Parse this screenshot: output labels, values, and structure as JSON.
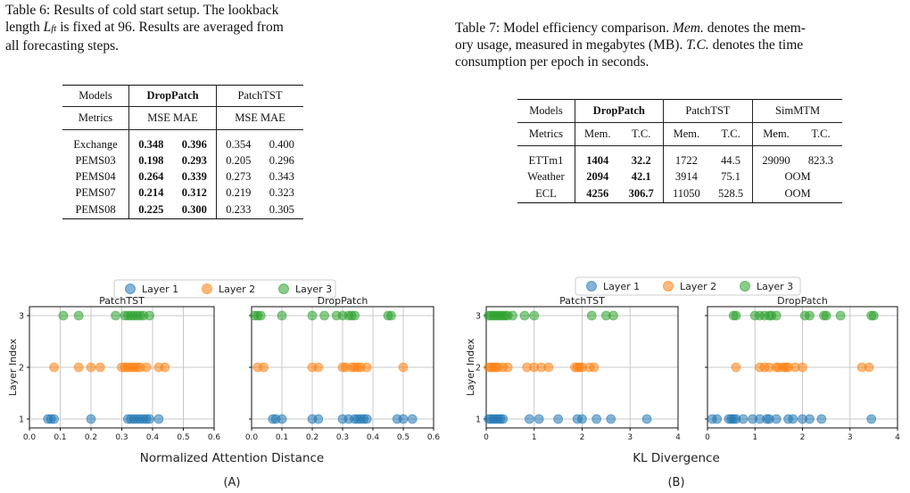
{
  "table6": {
    "caption_a": "Table 6: Results of cold start setup. The lookback",
    "caption_b1": "length ",
    "caption_sym": "L",
    "caption_sub": "ft",
    "caption_b2": " is fixed at 96. Results are averaged from",
    "caption_c": "all forecasting steps.",
    "h_models": "Models",
    "h_m1": "DropPatch",
    "h_m2": "PatchTST",
    "h_metrics": "Metrics",
    "h_mm1": "MSE MAE",
    "h_mm2": "MSE MAE",
    "rows": [
      {
        "name": "Exchange",
        "a": "0.348",
        "b": "0.396",
        "c": "0.354",
        "d": "0.400"
      },
      {
        "name": "PEMS03",
        "a": "0.198",
        "b": "0.293",
        "c": "0.205",
        "d": "0.296"
      },
      {
        "name": "PEMS04",
        "a": "0.264",
        "b": "0.339",
        "c": "0.273",
        "d": "0.343"
      },
      {
        "name": "PEMS07",
        "a": "0.214",
        "b": "0.312",
        "c": "0.219",
        "d": "0.323"
      },
      {
        "name": "PEMS08",
        "a": "0.225",
        "b": "0.300",
        "c": "0.233",
        "d": "0.305"
      }
    ]
  },
  "table7": {
    "cap_1a": "Table 7: Model efficiency comparison. ",
    "cap_mem": "Mem.",
    "cap_1b": " denotes the mem-",
    "cap_2": "ory usage, measured in megabytes (MB). ",
    "cap_tc": "T.C.",
    "cap_2b": " denotes the time",
    "cap_3": "consumption per epoch in seconds.",
    "h_models": "Models",
    "h_m1": "DropPatch",
    "h_m2": "PatchTST",
    "h_m3": "SimMTM",
    "h_metrics": "Metrics",
    "h_mem": "Mem.",
    "h_tc": "T.C.",
    "rows": [
      {
        "name": "ETTm1",
        "a": "1404",
        "b": "32.2",
        "c": "1722",
        "d": "44.5",
        "e": "29090",
        "f": "823.3"
      },
      {
        "name": "Weather",
        "a": "2094",
        "b": "42.1",
        "c": "3914",
        "d": "75.1",
        "e": "OOM"
      },
      {
        "name": "ECL",
        "a": "4256",
        "b": "306.7",
        "c": "11050",
        "d": "528.5",
        "e": "OOM"
      }
    ]
  },
  "figure": {
    "legend": [
      "Layer 1",
      "Layer 2",
      "Layer 3"
    ],
    "colors": {
      "layer1": "#1f77b4",
      "layer2": "#ff7f0e",
      "layer3": "#2ca02c"
    },
    "ylabel": "Layer Index",
    "label_a": "(A)",
    "label_b": "(B)"
  },
  "chart_data": [
    {
      "type": "scatter",
      "panel": "A-left",
      "title": "PatchTST",
      "xlabel": "Normalized Attention Distance",
      "ylabel": "Layer Index",
      "xlim": [
        0,
        0.6
      ],
      "xticks": [
        0.0,
        0.1,
        0.2,
        0.3,
        0.4,
        0.5,
        0.6
      ],
      "yticks": [
        1,
        2,
        3
      ],
      "grid": true,
      "series": [
        {
          "name": "Layer 1",
          "y": 1,
          "x": [
            0.06,
            0.07,
            0.08,
            0.2,
            0.32,
            0.33,
            0.34,
            0.35,
            0.36,
            0.37,
            0.38,
            0.39,
            0.42
          ]
        },
        {
          "name": "Layer 2",
          "y": 2,
          "x": [
            0.08,
            0.16,
            0.2,
            0.23,
            0.3,
            0.31,
            0.32,
            0.33,
            0.34,
            0.35,
            0.36,
            0.38,
            0.42,
            0.44
          ]
        },
        {
          "name": "Layer 3",
          "y": 3,
          "x": [
            0.11,
            0.16,
            0.28,
            0.31,
            0.32,
            0.33,
            0.34,
            0.35,
            0.36,
            0.37,
            0.39
          ]
        }
      ]
    },
    {
      "type": "scatter",
      "panel": "A-right",
      "title": "DropPatch",
      "xlabel": "Normalized Attention Distance",
      "ylabel": "",
      "xlim": [
        0,
        0.6
      ],
      "xticks": [
        0.0,
        0.1,
        0.2,
        0.3,
        0.4,
        0.5,
        0.6
      ],
      "yticks": [
        1,
        2,
        3
      ],
      "grid": true,
      "series": [
        {
          "name": "Layer 1",
          "y": 1,
          "x": [
            0.07,
            0.08,
            0.1,
            0.2,
            0.22,
            0.3,
            0.32,
            0.34,
            0.35,
            0.36,
            0.37,
            0.38,
            0.48,
            0.5,
            0.53
          ]
        },
        {
          "name": "Layer 2",
          "y": 2,
          "x": [
            0.02,
            0.04,
            0.2,
            0.22,
            0.3,
            0.31,
            0.33,
            0.34,
            0.35,
            0.36,
            0.38,
            0.5
          ]
        },
        {
          "name": "Layer 3",
          "y": 3,
          "x": [
            0.01,
            0.02,
            0.03,
            0.1,
            0.2,
            0.24,
            0.28,
            0.3,
            0.32,
            0.33,
            0.34,
            0.45,
            0.46
          ]
        }
      ]
    },
    {
      "type": "scatter",
      "panel": "B-left",
      "title": "PatchTST",
      "xlabel": "KL Divergence",
      "ylabel": "Layer Index",
      "xlim": [
        0,
        4
      ],
      "xticks": [
        0,
        1,
        2,
        3,
        4
      ],
      "yticks": [
        1,
        2,
        3
      ],
      "grid": true,
      "series": [
        {
          "name": "Layer 1",
          "y": 1,
          "x": [
            0.05,
            0.1,
            0.15,
            0.2,
            0.25,
            0.3,
            0.35,
            0.9,
            1.1,
            1.5,
            1.9,
            2.0,
            2.3,
            2.6,
            3.35
          ]
        },
        {
          "name": "Layer 2",
          "y": 2,
          "x": [
            0.05,
            0.1,
            0.15,
            0.2,
            0.25,
            0.35,
            0.45,
            0.85,
            1.0,
            1.15,
            1.3,
            1.85,
            1.9,
            1.95,
            2.0,
            2.15,
            2.25
          ]
        },
        {
          "name": "Layer 3",
          "y": 3,
          "x": [
            0.05,
            0.1,
            0.15,
            0.2,
            0.25,
            0.3,
            0.35,
            0.4,
            0.45,
            0.55,
            0.8,
            1.0,
            2.2,
            2.5,
            2.65
          ]
        }
      ]
    },
    {
      "type": "scatter",
      "panel": "B-right",
      "title": "DropPatch",
      "xlabel": "KL Divergence",
      "ylabel": "",
      "xlim": [
        0,
        4
      ],
      "xticks": [
        0,
        1,
        2,
        3,
        4
      ],
      "yticks": [
        1,
        2,
        3
      ],
      "grid": true,
      "series": [
        {
          "name": "Layer 1",
          "y": 1,
          "x": [
            0.1,
            0.2,
            0.45,
            0.5,
            0.55,
            0.6,
            0.75,
            0.95,
            1.1,
            1.25,
            1.3,
            1.45,
            1.7,
            1.8,
            2.0,
            2.15,
            2.4,
            3.45
          ]
        },
        {
          "name": "Layer 2",
          "y": 2,
          "x": [
            0.6,
            1.1,
            1.2,
            1.3,
            1.45,
            1.5,
            1.6,
            1.65,
            1.7,
            1.85,
            2.0,
            3.25,
            3.4
          ]
        },
        {
          "name": "Layer 3",
          "y": 3,
          "x": [
            0.55,
            0.6,
            1.0,
            1.1,
            1.2,
            1.3,
            1.35,
            1.45,
            2.05,
            2.15,
            2.45,
            2.5,
            2.8,
            3.45,
            3.5
          ]
        }
      ]
    }
  ]
}
